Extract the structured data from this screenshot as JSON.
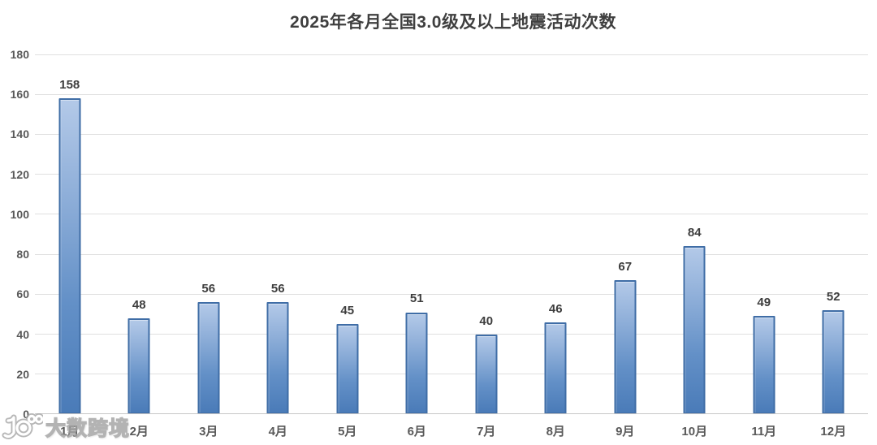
{
  "chart_data": {
    "type": "bar",
    "title": "2025年各月全国3.0级及以上地震活动次数",
    "categories": [
      "1月",
      "2月",
      "3月",
      "4月",
      "5月",
      "6月",
      "7月",
      "8月",
      "9月",
      "10月",
      "11月",
      "12月"
    ],
    "values": [
      158,
      48,
      56,
      56,
      45,
      51,
      40,
      46,
      67,
      84,
      49,
      52
    ],
    "xlabel": "",
    "ylabel": "",
    "ylim": [
      0,
      180
    ],
    "ytick_step": 20,
    "yticks": [
      0,
      20,
      40,
      60,
      80,
      100,
      120,
      140,
      160,
      180
    ],
    "grid": true,
    "legend": false,
    "value_labels_shown": true
  },
  "watermark": {
    "text": "大数跨境"
  },
  "colors": {
    "bar_top": "#b3c9e8",
    "bar_bottom": "#4a7bb8",
    "bar_border": "#3f6da6",
    "gridline": "#e0e0e0",
    "axis_line": "#c6c6c6",
    "title_text": "#3f3f3f",
    "axis_text": "#595959",
    "value_text": "#3d3d3d",
    "background": "#ffffff"
  }
}
